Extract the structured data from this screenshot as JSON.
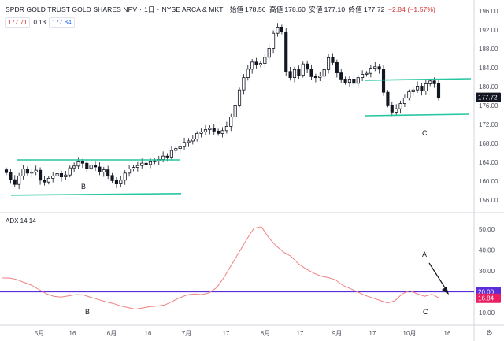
{
  "header": {
    "symbol": "SPDR GOLD TRUST GOLD SHARES NPV",
    "interval": "1日",
    "exchange": "NYSE ARCA & MKT",
    "ohlc": {
      "open_label": "始値",
      "open": "178.56",
      "high_label": "高値",
      "high": "178.60",
      "low_label": "安値",
      "low": "177.10",
      "close_label": "終値",
      "close": "177.72",
      "change": "−2.84 (−1.57%)"
    }
  },
  "chips": {
    "bid": "177.71",
    "spread": "0.13",
    "ask": "177.84"
  },
  "colors": {
    "channel": "#26c6a0",
    "adx_line": "#f08080",
    "threshold": "#5b2ddb",
    "last_price_bg": "#131722",
    "adx_value_bg": "#e91e63"
  },
  "indicator": {
    "title": "ADX 14 14",
    "threshold_label": "20.00",
    "current_label": "16.84"
  },
  "last_price_label": "177.72",
  "annotations": {
    "left_price": "B",
    "right_price": "C",
    "left_adx": "B",
    "right_adx": "C",
    "arrow_label": "A"
  },
  "x_axis_labels": [
    "5月",
    "16",
    "6月",
    "16",
    "7月",
    "17",
    "8月",
    "17",
    "9月",
    "17",
    "10月",
    "16"
  ],
  "chart_data": [
    {
      "type": "candlestick",
      "title": "SPDR GOLD TRUST GOLD SHARES NPV",
      "ylim": [
        154,
        196
      ],
      "y_ticks": [
        156,
        160,
        164,
        168,
        172,
        176,
        180,
        184,
        188,
        192,
        196
      ],
      "x_labels": [
        "5月",
        "16",
        "6月",
        "16",
        "7月",
        "17",
        "8月",
        "17",
        "9月",
        "17",
        "10月",
        "16"
      ],
      "last_price": 177.72,
      "closes": [
        161.8,
        160.3,
        159.3,
        161.1,
        162.6,
        161.7,
        161.9,
        162.3,
        160.2,
        159.8,
        160.6,
        161.1,
        161.6,
        160.9,
        161.3,
        162.8,
        163.2,
        164.1,
        163.8,
        162.7,
        163.4,
        163.0,
        161.9,
        162.4,
        161.2,
        160.1,
        159.4,
        160.2,
        161.7,
        162.6,
        162.9,
        163.3,
        163.8,
        163.5,
        164.1,
        164.3,
        164.6,
        165.3,
        165.1,
        166.5,
        166.9,
        167.3,
        168.2,
        168.5,
        168.9,
        170.1,
        170.4,
        170.9,
        171.2,
        170.6,
        170.1,
        170.7,
        171.6,
        173.6,
        176.1,
        179.3,
        181.9,
        183.7,
        185.2,
        184.6,
        184.9,
        186.2,
        188.1,
        191.3,
        192.6,
        191.6,
        183.2,
        181.9,
        183.6,
        182.4,
        184.8,
        183.7,
        182.1,
        181.9,
        182.2,
        183.6,
        186.1,
        185.1,
        182.9,
        181.6,
        180.9,
        181.6,
        180.7,
        181.9,
        182.6,
        182.8,
        183.9,
        184.2,
        183.7,
        178.8,
        176.1,
        174.6,
        175.3,
        176.4,
        177.6,
        178.9,
        179.3,
        180.1,
        179.1,
        180.6,
        181.2,
        180.6,
        177.7
      ],
      "channel_B": {
        "upper": 164.5,
        "lower": 157.2
      },
      "channel_C": {
        "upper": 181.5,
        "lower": 174.0
      }
    },
    {
      "type": "line",
      "title": "ADX 14 14",
      "ylim": [
        5,
        55
      ],
      "y_ticks": [
        10,
        20,
        30,
        40,
        50
      ],
      "threshold": 20,
      "series": [
        {
          "values": [
            26.6,
            26.6,
            25.9,
            24.5,
            23.2,
            21.1,
            19.1,
            17.8,
            17.4,
            18.0,
            18.6,
            18.5,
            17.3,
            16.3,
            15.2,
            14.4,
            13.2,
            12.4,
            11.6,
            12.2,
            12.8,
            13.1,
            13.6,
            15.3,
            17.1,
            18.5,
            18.9,
            18.6,
            19.5,
            22.0,
            27.0,
            33.0,
            39.0,
            45.0,
            50.5,
            51.3,
            46.0,
            42.0,
            39.0,
            37.0,
            33.5,
            31.0,
            29.0,
            27.5,
            26.8,
            25.7,
            23.0,
            21.5,
            19.8,
            18.2,
            17.0,
            15.8,
            14.6,
            15.6,
            19.0,
            20.5,
            19.0,
            17.8,
            18.8,
            16.84
          ]
        }
      ]
    }
  ]
}
